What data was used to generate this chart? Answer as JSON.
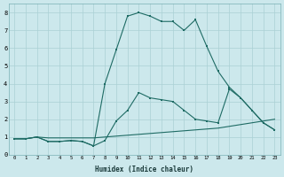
{
  "xlabel": "Humidex (Indice chaleur)",
  "bg_color": "#cce8ec",
  "line_color": "#1e6b64",
  "grid_color": "#aad0d4",
  "xlim": [
    -0.5,
    23.5
  ],
  "ylim": [
    0,
    8.5
  ],
  "xticks": [
    0,
    1,
    2,
    3,
    4,
    5,
    6,
    7,
    8,
    9,
    10,
    11,
    12,
    13,
    14,
    15,
    16,
    17,
    18,
    19,
    20,
    21,
    22,
    23
  ],
  "yticks": [
    0,
    1,
    2,
    3,
    4,
    5,
    6,
    7,
    8
  ],
  "line1_x": [
    0,
    1,
    2,
    3,
    4,
    5,
    6,
    7,
    8,
    9,
    10,
    11,
    12,
    13,
    14,
    15,
    16,
    17,
    18,
    19,
    20,
    21,
    22,
    23
  ],
  "line1_y": [
    0.9,
    0.9,
    1.0,
    0.95,
    0.95,
    0.95,
    0.95,
    0.95,
    1.0,
    1.05,
    1.1,
    1.15,
    1.2,
    1.25,
    1.3,
    1.35,
    1.4,
    1.45,
    1.5,
    1.6,
    1.7,
    1.8,
    1.9,
    2.0
  ],
  "line2_x": [
    0,
    1,
    2,
    3,
    4,
    5,
    6,
    7,
    8,
    9,
    10,
    11,
    12,
    13,
    14,
    15,
    16,
    17,
    18,
    19,
    20,
    21,
    22,
    23
  ],
  "line2_y": [
    0.9,
    0.9,
    1.0,
    0.75,
    0.75,
    0.8,
    0.75,
    0.5,
    0.8,
    1.9,
    2.5,
    3.5,
    3.2,
    3.1,
    3.0,
    2.5,
    2.0,
    1.9,
    1.8,
    3.7,
    3.2,
    2.5,
    1.8,
    1.4
  ],
  "line3_x": [
    0,
    1,
    2,
    3,
    4,
    5,
    6,
    7,
    8,
    9,
    10,
    11,
    12,
    13,
    14,
    15,
    16,
    17,
    18,
    19,
    20,
    21,
    22,
    23
  ],
  "line3_y": [
    0.9,
    0.9,
    1.0,
    0.75,
    0.75,
    0.8,
    0.75,
    0.5,
    4.0,
    5.9,
    7.8,
    8.0,
    7.8,
    7.5,
    7.5,
    7.0,
    7.6,
    6.1,
    4.7,
    3.8,
    3.2,
    2.5,
    1.8,
    1.4
  ]
}
